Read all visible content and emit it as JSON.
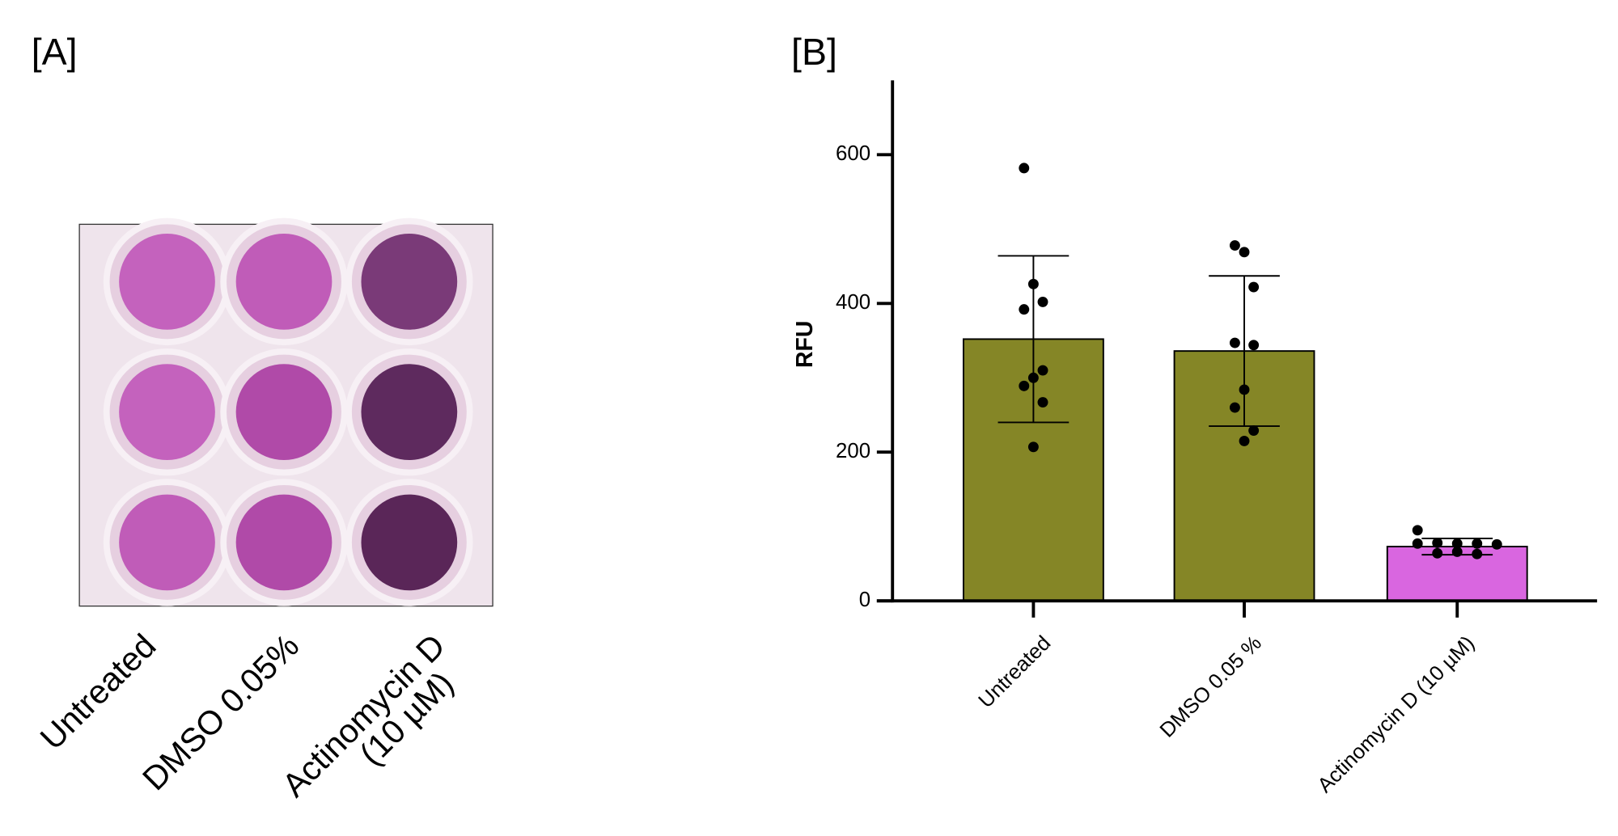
{
  "panel_a": {
    "label": "[A]",
    "columns": [
      "Untreated",
      "DMSO 0.05%",
      [
        "Actinomycin D",
        "(10 µM)"
      ]
    ]
  },
  "chart_data": {
    "type": "bar",
    "label": "[B]",
    "y_label": "RFU",
    "categories": [
      "Untreated",
      "DMSO 0.05 %",
      "Actinomycin D (10 µM)"
    ],
    "values": [
      352,
      336,
      73
    ],
    "errors": [
      112,
      101,
      11
    ],
    "colors": [
      "#858626",
      "#858626",
      "#d966e0"
    ],
    "points": [
      [
        582,
        426,
        402,
        392,
        310,
        300,
        289,
        267,
        207
      ],
      [
        478,
        469,
        422,
        347,
        344,
        284,
        260,
        229,
        215
      ],
      [
        95,
        78,
        77,
        77,
        76,
        77,
        64,
        66,
        63
      ]
    ],
    "ylim": [
      0,
      700
    ],
    "yticks": [
      0,
      200,
      400,
      600
    ]
  }
}
